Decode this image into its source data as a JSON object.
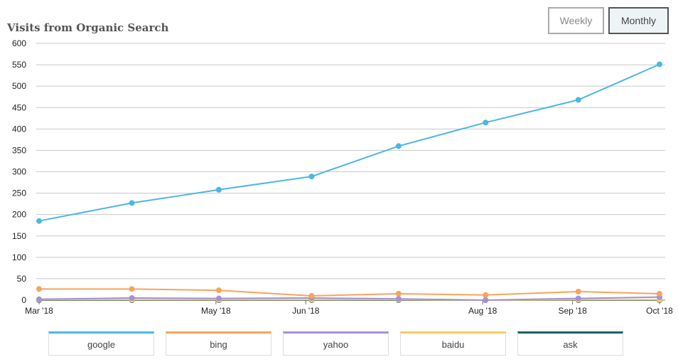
{
  "title": "Visits from Organic Search",
  "buttons": {
    "weekly": "Weekly",
    "monthly": "Monthly"
  },
  "chart_data": {
    "type": "line",
    "ylim": [
      0,
      600
    ],
    "y_ticks": [
      0,
      50,
      100,
      150,
      200,
      250,
      300,
      350,
      400,
      450,
      500,
      550,
      600
    ],
    "xlim": [
      "2018-03-01",
      "2018-10-01"
    ],
    "x_ticks": [
      {
        "date": "2018-03-01",
        "label": "Mar '18"
      },
      {
        "date": "2018-05-01",
        "label": "May '18"
      },
      {
        "date": "2018-06-01",
        "label": "Jun '18"
      },
      {
        "date": "2018-08-01",
        "label": "Aug '18"
      },
      {
        "date": "2018-09-01",
        "label": "Sep '18"
      },
      {
        "date": "2018-10-01",
        "label": "Oct '18"
      }
    ],
    "x": [
      "2018-03-01",
      "2018-04-02",
      "2018-05-02",
      "2018-06-03",
      "2018-07-03",
      "2018-08-02",
      "2018-09-03",
      "2018-10-01"
    ],
    "grid": true,
    "legend_position": "bottom",
    "series": [
      {
        "name": "google",
        "color": "#4db6e4",
        "values": [
          185,
          227,
          258,
          289,
          360,
          415,
          468,
          551
        ]
      },
      {
        "name": "bing",
        "color": "#f5a55c",
        "values": [
          26,
          26,
          23,
          10,
          15,
          12,
          20,
          15
        ]
      },
      {
        "name": "yahoo",
        "color": "#a58fd9",
        "values": [
          2,
          5,
          4,
          5,
          3,
          0,
          4,
          7
        ]
      },
      {
        "name": "baidu",
        "color": "#f7cc5a",
        "values": [
          1,
          1,
          1,
          1,
          1,
          0,
          1,
          1
        ]
      },
      {
        "name": "ask",
        "color": "#1f5f6a",
        "values": [
          0,
          0,
          0,
          0,
          0,
          0,
          0,
          0
        ]
      }
    ]
  }
}
